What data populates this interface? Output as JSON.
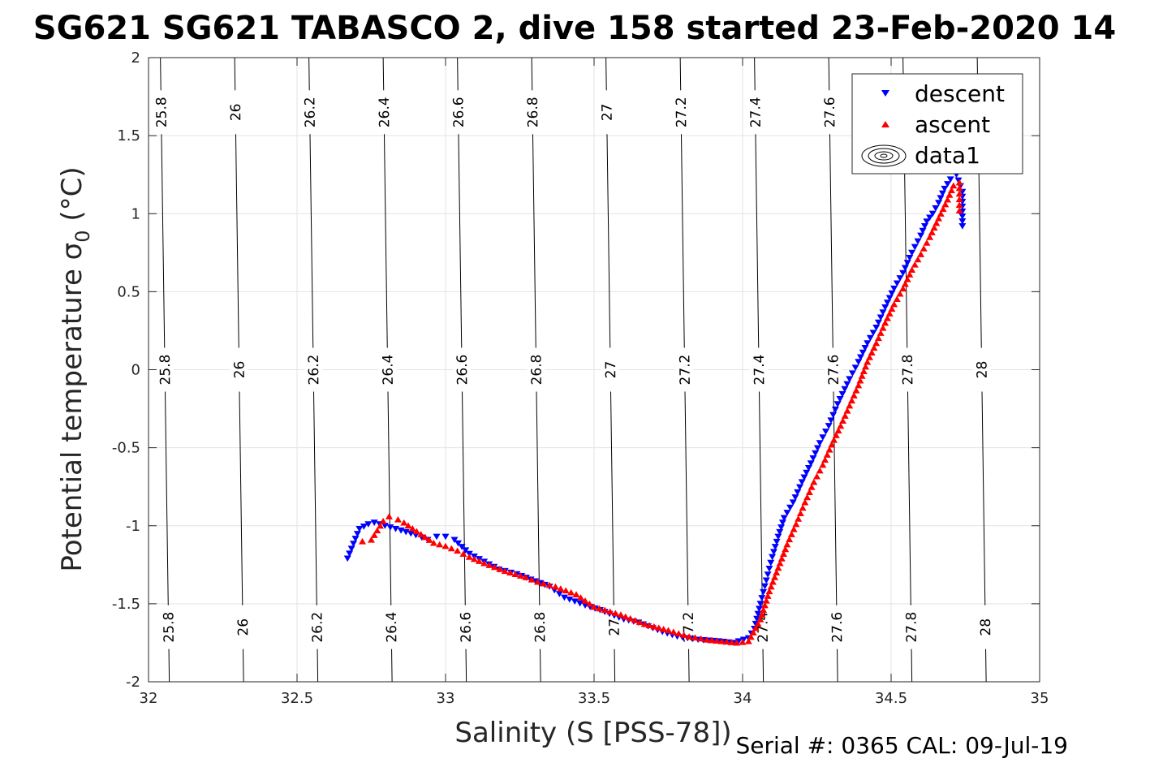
{
  "chart_data": {
    "type": "scatter",
    "title": "SG621 SG621 TABASCO 2, dive 158 started 23-Feb-2020 14",
    "xlabel": "Salinity (S [PSS-78])",
    "ylabel": "Potential temperature σ",
    "ylabel_sub": "0",
    "ylabel_unit": " (°C)",
    "xlim": [
      32,
      35
    ],
    "ylim": [
      -2,
      2
    ],
    "xticks": [
      32,
      32.5,
      33,
      33.5,
      34,
      34.5,
      35
    ],
    "yticks": [
      -2,
      -1.5,
      -1,
      -0.5,
      0,
      0.5,
      1,
      1.5,
      2
    ],
    "xtick_labels": [
      "32",
      "32.5",
      "33",
      "33.5",
      "34",
      "34.5",
      "35"
    ],
    "ytick_labels": [
      "-2",
      "-1.5",
      "-1",
      "-0.5",
      "0",
      "0.5",
      "1",
      "1.5",
      "2"
    ],
    "grid": true,
    "legend_position": "top-right",
    "footer": "Serial #: 0365  CAL: 09-Jul-19",
    "isopycnals": [
      {
        "label": "25.8",
        "s_top": 32.04,
        "s_bottom": 32.07
      },
      {
        "label": "26",
        "s_top": 32.29,
        "s_bottom": 32.32
      },
      {
        "label": "26.2",
        "s_top": 32.54,
        "s_bottom": 32.57
      },
      {
        "label": "26.4",
        "s_top": 32.79,
        "s_bottom": 32.82
      },
      {
        "label": "26.6",
        "s_top": 33.04,
        "s_bottom": 33.07
      },
      {
        "label": "26.8",
        "s_top": 33.29,
        "s_bottom": 33.32
      },
      {
        "label": "27",
        "s_top": 33.54,
        "s_bottom": 33.57
      },
      {
        "label": "27.2",
        "s_top": 33.79,
        "s_bottom": 33.82
      },
      {
        "label": "27.4",
        "s_top": 34.04,
        "s_bottom": 34.07
      },
      {
        "label": "27.6",
        "s_top": 34.29,
        "s_bottom": 34.32
      },
      {
        "label": "27.8",
        "s_top": 34.54,
        "s_bottom": 34.57
      },
      {
        "label": "28",
        "s_top": 34.79,
        "s_bottom": 34.82
      }
    ],
    "series": [
      {
        "name": "descent",
        "color": "#0000ff",
        "marker": "triangle-down",
        "points": [
          [
            32.67,
            -1.21
          ],
          [
            32.71,
            -1.02
          ],
          [
            32.74,
            -0.99
          ],
          [
            32.76,
            -0.98
          ],
          [
            32.85,
            -1.03
          ],
          [
            32.9,
            -1.06
          ],
          [
            32.94,
            -1.09
          ],
          [
            32.97,
            -1.07
          ],
          [
            33.0,
            -1.07
          ],
          [
            33.03,
            -1.09
          ],
          [
            33.08,
            -1.18
          ],
          [
            33.18,
            -1.28
          ],
          [
            33.24,
            -1.31
          ],
          [
            33.35,
            -1.39
          ],
          [
            33.4,
            -1.46
          ],
          [
            33.47,
            -1.51
          ],
          [
            33.52,
            -1.54
          ],
          [
            33.6,
            -1.6
          ],
          [
            33.65,
            -1.62
          ],
          [
            33.73,
            -1.68
          ],
          [
            33.78,
            -1.71
          ],
          [
            33.85,
            -1.73
          ],
          [
            33.92,
            -1.74
          ],
          [
            33.97,
            -1.75
          ],
          [
            34.02,
            -1.72
          ],
          [
            34.04,
            -1.66
          ],
          [
            34.06,
            -1.5
          ],
          [
            34.08,
            -1.35
          ],
          [
            34.1,
            -1.2
          ],
          [
            34.12,
            -1.07
          ],
          [
            34.14,
            -0.95
          ],
          [
            34.17,
            -0.85
          ],
          [
            34.2,
            -0.72
          ],
          [
            34.23,
            -0.6
          ],
          [
            34.26,
            -0.47
          ],
          [
            34.29,
            -0.36
          ],
          [
            34.32,
            -0.22
          ],
          [
            34.36,
            -0.06
          ],
          [
            34.39,
            0.05
          ],
          [
            34.42,
            0.17
          ],
          [
            34.45,
            0.27
          ],
          [
            34.48,
            0.4
          ],
          [
            34.51,
            0.52
          ],
          [
            34.54,
            0.62
          ],
          [
            34.57,
            0.75
          ],
          [
            34.6,
            0.86
          ],
          [
            34.62,
            0.95
          ],
          [
            34.64,
            1.0
          ],
          [
            34.66,
            1.07
          ],
          [
            34.68,
            1.16
          ],
          [
            34.7,
            1.22
          ],
          [
            34.72,
            1.25
          ],
          [
            34.74,
            1.14
          ],
          [
            34.74,
            0.92
          ]
        ]
      },
      {
        "name": "ascent",
        "color": "#ff0000",
        "marker": "triangle-up",
        "points": [
          [
            32.72,
            -1.1
          ],
          [
            32.75,
            -1.09
          ],
          [
            32.77,
            -1.03
          ],
          [
            32.79,
            -0.97
          ],
          [
            32.81,
            -0.94
          ],
          [
            32.84,
            -0.96
          ],
          [
            32.86,
            -0.98
          ],
          [
            32.96,
            -1.11
          ],
          [
            33.0,
            -1.13
          ],
          [
            33.04,
            -1.16
          ],
          [
            33.08,
            -1.2
          ],
          [
            33.13,
            -1.24
          ],
          [
            33.2,
            -1.29
          ],
          [
            33.27,
            -1.33
          ],
          [
            33.31,
            -1.36
          ],
          [
            33.37,
            -1.39
          ],
          [
            33.44,
            -1.44
          ],
          [
            33.5,
            -1.52
          ],
          [
            33.59,
            -1.57
          ],
          [
            33.67,
            -1.63
          ],
          [
            33.75,
            -1.67
          ],
          [
            33.82,
            -1.71
          ],
          [
            33.88,
            -1.73
          ],
          [
            33.93,
            -1.74
          ],
          [
            33.98,
            -1.75
          ],
          [
            34.02,
            -1.74
          ],
          [
            34.06,
            -1.6
          ],
          [
            34.09,
            -1.42
          ],
          [
            34.12,
            -1.27
          ],
          [
            34.15,
            -1.12
          ],
          [
            34.18,
            -0.99
          ],
          [
            34.21,
            -0.85
          ],
          [
            34.24,
            -0.72
          ],
          [
            34.27,
            -0.61
          ],
          [
            34.3,
            -0.48
          ],
          [
            34.33,
            -0.36
          ],
          [
            34.36,
            -0.23
          ],
          [
            34.39,
            -0.1
          ],
          [
            34.42,
            0.05
          ],
          [
            34.45,
            0.17
          ],
          [
            34.48,
            0.3
          ],
          [
            34.51,
            0.42
          ],
          [
            34.54,
            0.52
          ],
          [
            34.57,
            0.64
          ],
          [
            34.6,
            0.74
          ],
          [
            34.63,
            0.85
          ],
          [
            34.66,
            0.97
          ],
          [
            34.69,
            1.09
          ],
          [
            34.71,
            1.18
          ],
          [
            34.73,
            1.2
          ],
          [
            34.73,
            1.02
          ]
        ]
      }
    ],
    "legend": [
      {
        "label": "descent",
        "marker": "triangle-down",
        "color": "#0000ff"
      },
      {
        "label": "ascent",
        "marker": "triangle-up",
        "color": "#ff0000"
      },
      {
        "label": "data1",
        "marker": "contour",
        "color": "#000000"
      }
    ]
  }
}
